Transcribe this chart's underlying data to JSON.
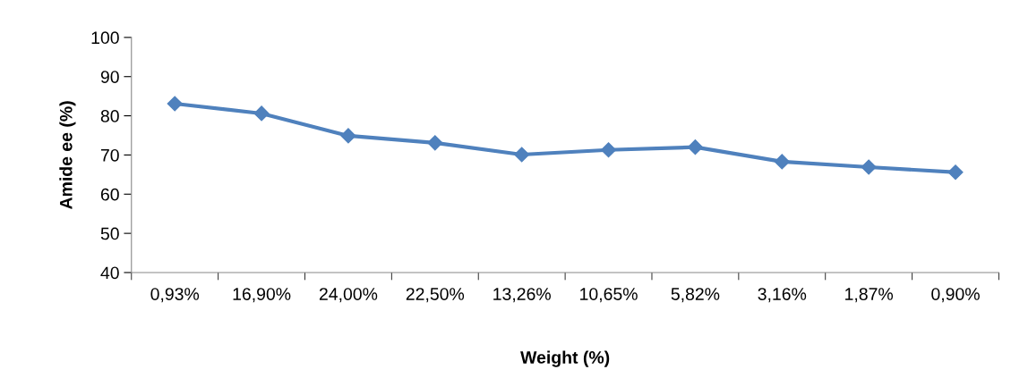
{
  "chart_data": {
    "type": "line",
    "xlabel": "Weight (%)",
    "ylabel": "Amide ee (%)",
    "categories": [
      "0,93%",
      "16,90%",
      "24,00%",
      "22,50%",
      "13,26%",
      "10,65%",
      "5,82%",
      "3,16%",
      "1,87%",
      "0,90%"
    ],
    "series": [
      {
        "color": "#4f81bd",
        "values": [
          83.1,
          80.6,
          74.9,
          73.1,
          70.1,
          71.3,
          72.0,
          68.3,
          66.9,
          65.6
        ]
      }
    ],
    "ylim": [
      40,
      100
    ],
    "yticks": [
      40,
      50,
      60,
      70,
      80,
      90,
      100
    ],
    "grid": false,
    "legend": false,
    "marker": "diamond",
    "line_style": "solid"
  }
}
